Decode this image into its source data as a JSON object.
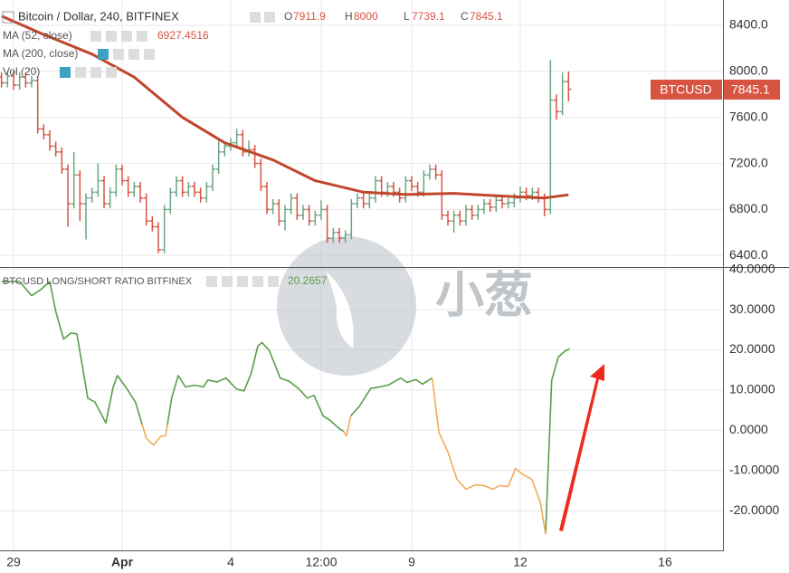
{
  "chart_data": [
    {
      "type": "candlestick",
      "title": "Bitcoin / Dollar, 240, BITFINEX",
      "ohlc_labels": [
        "O",
        "H",
        "L",
        "C"
      ],
      "indicators": [
        "MA (200, close)",
        "Vol (20)"
      ],
      "symbol": "BTCUSD",
      "up_color": "#6ba583",
      "down_color": "#d75442",
      "xlim": [
        -2.25,
        117.75
      ],
      "ylim": [
        6300,
        8620
      ],
      "yticks": [
        {
          "value": 8400,
          "label": "8400.0"
        },
        {
          "value": 8000,
          "label": "8000.0"
        },
        {
          "value": 7600,
          "label": "7600.0"
        },
        {
          "value": 7200,
          "label": "7200.0"
        },
        {
          "value": 6800,
          "label": "6800.0"
        },
        {
          "value": 6400,
          "label": "6400.0"
        }
      ],
      "grid": true,
      "x": [
        -2,
        -1,
        0,
        1,
        2,
        3,
        4,
        5,
        6,
        7,
        8,
        9,
        10,
        11,
        12,
        13,
        14,
        15,
        16,
        17,
        18,
        19,
        20,
        21,
        22,
        23,
        24,
        25,
        26,
        27,
        28,
        29,
        30,
        31,
        32,
        33,
        34,
        35,
        36,
        37,
        38,
        39,
        40,
        41,
        42,
        43,
        44,
        45,
        46,
        47,
        48,
        49,
        50,
        51,
        52,
        53,
        54,
        55,
        56,
        57,
        58,
        59,
        60,
        61,
        62,
        63,
        64,
        65,
        66,
        67,
        68,
        69,
        70,
        71,
        72,
        73,
        74,
        75,
        76,
        77,
        78,
        79,
        80,
        81,
        82,
        83,
        84,
        85,
        86,
        87,
        88,
        89,
        90,
        91,
        92
      ],
      "candles": [
        [
          7950,
          7990,
          7860,
          7900
        ],
        [
          7900,
          8000,
          7860,
          7960
        ],
        [
          7960,
          8000,
          7840,
          7880
        ],
        [
          7880,
          7990,
          7840,
          7950
        ],
        [
          7950,
          7990,
          7860,
          7900
        ],
        [
          7900,
          7960,
          7860,
          7920
        ],
        [
          7920,
          7960,
          7460,
          7500
        ],
        [
          7500,
          7540,
          7410,
          7450
        ],
        [
          7450,
          7490,
          7310,
          7350
        ],
        [
          7350,
          7390,
          7260,
          7300
        ],
        [
          7300,
          7340,
          7110,
          7150
        ],
        [
          7150,
          7190,
          6650,
          6850
        ],
        [
          6850,
          7300,
          6810,
          7100
        ],
        [
          7100,
          7140,
          6700,
          6850
        ],
        [
          6850,
          6940,
          6540,
          6900
        ],
        [
          6900,
          6990,
          6860,
          6950
        ],
        [
          6950,
          7200,
          6910,
          7050
        ],
        [
          7050,
          7090,
          6810,
          6850
        ],
        [
          6850,
          6990,
          6810,
          6950
        ],
        [
          6950,
          7190,
          6910,
          7150
        ],
        [
          7150,
          7190,
          7010,
          7050
        ],
        [
          7050,
          7090,
          6910,
          6950
        ],
        [
          6950,
          7040,
          6910,
          7000
        ],
        [
          7000,
          7040,
          6860,
          6900
        ],
        [
          6900,
          6940,
          6660,
          6700
        ],
        [
          6700,
          6740,
          6610,
          6650
        ],
        [
          6650,
          6690,
          6420,
          6450
        ],
        [
          6450,
          6840,
          6420,
          6800
        ],
        [
          6800,
          6990,
          6760,
          6950
        ],
        [
          6950,
          7090,
          6910,
          7050
        ],
        [
          7050,
          7090,
          6910,
          6950
        ],
        [
          6950,
          7040,
          6910,
          7000
        ],
        [
          7000,
          7040,
          6910,
          6950
        ],
        [
          6950,
          6990,
          6860,
          6900
        ],
        [
          6900,
          7040,
          6860,
          7000
        ],
        [
          7000,
          7190,
          6960,
          7150
        ],
        [
          7150,
          7400,
          7110,
          7300
        ],
        [
          7300,
          7390,
          7260,
          7350
        ],
        [
          7350,
          7420,
          7310,
          7380
        ],
        [
          7380,
          7500,
          7340,
          7450
        ],
        [
          7450,
          7490,
          7260,
          7300
        ],
        [
          7300,
          7400,
          7260,
          7320
        ],
        [
          7320,
          7360,
          7160,
          7200
        ],
        [
          7200,
          7240,
          6960,
          7000
        ],
        [
          7000,
          7040,
          6760,
          6800
        ],
        [
          6800,
          6890,
          6760,
          6850
        ],
        [
          6850,
          6890,
          6660,
          6700
        ],
        [
          6700,
          6840,
          6620,
          6800
        ],
        [
          6800,
          6940,
          6760,
          6900
        ],
        [
          6900,
          6940,
          6710,
          6750
        ],
        [
          6750,
          6840,
          6710,
          6800
        ],
        [
          6800,
          6840,
          6660,
          6700
        ],
        [
          6700,
          6790,
          6660,
          6750
        ],
        [
          6750,
          6880,
          6710,
          6800
        ],
        [
          6800,
          6840,
          6510,
          6550
        ],
        [
          6550,
          6640,
          6510,
          6600
        ],
        [
          6600,
          6640,
          6510,
          6550
        ],
        [
          6550,
          6620,
          6510,
          6580
        ],
        [
          6580,
          6890,
          6540,
          6850
        ],
        [
          6850,
          6940,
          6810,
          6900
        ],
        [
          6900,
          6940,
          6810,
          6850
        ],
        [
          6850,
          6940,
          6810,
          6900
        ],
        [
          6900,
          7090,
          6860,
          7050
        ],
        [
          7050,
          7090,
          6910,
          6950
        ],
        [
          6950,
          7040,
          6910,
          7000
        ],
        [
          7000,
          7040,
          6910,
          6950
        ],
        [
          6950,
          6990,
          6860,
          6900
        ],
        [
          6900,
          7090,
          6860,
          7050
        ],
        [
          7050,
          7090,
          6960,
          7000
        ],
        [
          7000,
          7040,
          6910,
          6950
        ],
        [
          6950,
          7140,
          6910,
          7100
        ],
        [
          7100,
          7190,
          7060,
          7150
        ],
        [
          7150,
          7190,
          7060,
          7100
        ],
        [
          7100,
          7140,
          6710,
          6750
        ],
        [
          6750,
          6790,
          6660,
          6700
        ],
        [
          6700,
          6790,
          6600,
          6750
        ],
        [
          6750,
          6790,
          6660,
          6700
        ],
        [
          6700,
          6840,
          6660,
          6800
        ],
        [
          6800,
          6840,
          6710,
          6750
        ],
        [
          6750,
          6840,
          6710,
          6800
        ],
        [
          6800,
          6890,
          6760,
          6850
        ],
        [
          6850,
          6890,
          6780,
          6820
        ],
        [
          6820,
          6920,
          6780,
          6880
        ],
        [
          6880,
          6920,
          6810,
          6850
        ],
        [
          6850,
          6900,
          6810,
          6860
        ],
        [
          6860,
          6940,
          6820,
          6900
        ],
        [
          6900,
          7000,
          6860,
          6950
        ],
        [
          6950,
          6990,
          6880,
          6920
        ],
        [
          6920,
          6990,
          6880,
          6950
        ],
        [
          6950,
          6990,
          6860,
          6900
        ],
        [
          6900,
          6940,
          6740,
          6800
        ],
        [
          6800,
          8100,
          6760,
          7750
        ],
        [
          7750,
          7800,
          7580,
          7650
        ],
        [
          7650,
          7990,
          7620,
          7911.9
        ],
        [
          7911.9,
          8000,
          7739.1,
          7845.1
        ]
      ],
      "series": [
        {
          "name": "MA (52, close)",
          "color": "#c0462d",
          "x": [
            -2,
            5,
            13,
            20,
            28,
            35,
            43,
            50,
            58,
            65,
            73,
            80,
            88,
            92
          ],
          "values": [
            8480,
            8320,
            8150,
            7950,
            7600,
            7380,
            7230,
            7050,
            6950,
            6930,
            6940,
            6920,
            6900,
            6927.4516
          ]
        }
      ]
    },
    {
      "type": "line",
      "title": "BTCUSD LONG/SHORT RATIO BITFINEX",
      "xlim": [
        -2.25,
        117.75
      ],
      "ylim": [
        -29.9,
        40.4
      ],
      "xticks": [
        {
          "value": 0,
          "label": "29"
        },
        {
          "value": 18,
          "label": "Apr"
        },
        {
          "value": 36,
          "label": "4"
        },
        {
          "value": 51,
          "label": "12:00"
        },
        {
          "value": 66,
          "label": "9"
        },
        {
          "value": 84,
          "label": "12"
        },
        {
          "value": 108,
          "label": "16"
        }
      ],
      "yticks": [
        {
          "value": 40,
          "label": "40.0000"
        },
        {
          "value": 30,
          "label": "30.0000"
        },
        {
          "value": 20,
          "label": "20.0000"
        },
        {
          "value": 10,
          "label": "10.0000"
        },
        {
          "value": 0,
          "label": "0.0000"
        },
        {
          "value": -10,
          "label": "-10.0000"
        },
        {
          "value": -20,
          "label": "-20.0000"
        }
      ],
      "grid": true,
      "series": [
        {
          "color": "#5a9e48",
          "x": [
            -2,
            1,
            3,
            4.5,
            6,
            7,
            8.3,
            9.5,
            10.5,
            12.3,
            13.5,
            15.3,
            16.5,
            17.2,
            18.7,
            20.2,
            21.3,
            23,
            25.5,
            26.2,
            27.3,
            28.5,
            30,
            31.5,
            32.2,
            33.7,
            35.2,
            37,
            38.2,
            39.4,
            40.5,
            41.2,
            42.4,
            44.2,
            45.7,
            47.2,
            48.7,
            49.8,
            51.3,
            52.5,
            54,
            54.7,
            55.2,
            55.9,
            57.3,
            59.2,
            60.7,
            62.2,
            64.2,
            65.2,
            66.7,
            67.8,
            69.4,
            80,
            88.2,
            89.2,
            90.3,
            91.5,
            92.2
          ],
          "values": [
            37,
            37,
            33.5,
            35,
            37,
            29.5,
            22.7,
            24.2,
            24,
            8,
            7,
            1.8,
            10.7,
            13.6,
            10.5,
            7,
            1.5,
            null,
            1.3,
            8,
            13.6,
            10.8,
            11.2,
            10.8,
            12.5,
            12,
            13,
            10.2,
            9.8,
            14.2,
            21,
            21.8,
            19.8,
            13,
            12.2,
            10.4,
            8,
            8.7,
            3.6,
            2.4,
            0.4,
            -0.3,
            null,
            3.6,
            5.9,
            10.4,
            10.8,
            11.3,
            13,
            11.9,
            12.6,
            11.5,
            13,
            null,
            -25.8,
            12.4,
            18.2,
            19.8,
            20.2657
          ]
        },
        {
          "color": "#f0ab5a",
          "x": [
            21.3,
            22,
            23.2,
            24.4,
            25.2,
            25.5,
            40,
            54.7,
            55.2,
            55.9,
            62,
            69.4,
            70.5,
            72,
            73.5,
            75,
            76.5,
            78,
            79.5,
            80.5,
            82,
            83.2,
            84.4,
            85.9,
            87.3,
            88.2
          ],
          "values": [
            1.5,
            -2,
            -3.7,
            -1.5,
            -1.4,
            1.3,
            null,
            -0.3,
            -1.4,
            3.6,
            null,
            13,
            -0.5,
            -5.4,
            -12.2,
            -14.7,
            -13.6,
            -13.8,
            -14.7,
            -13.8,
            -14,
            -9.5,
            -11,
            -12.2,
            -17.8,
            -25.8
          ]
        }
      ]
    }
  ],
  "watermark": "小葱"
}
